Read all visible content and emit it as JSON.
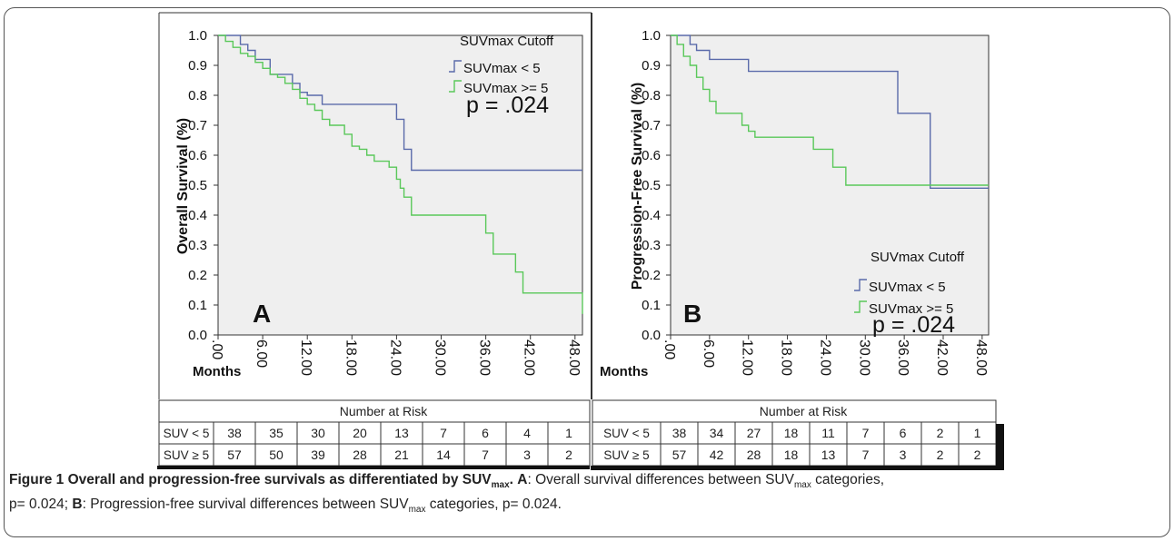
{
  "chart_data": [
    {
      "type": "line",
      "panel_letter": "A",
      "ylabel": "Overall Survival (%)",
      "xlabel": "Months",
      "ylim": [
        0.0,
        1.0
      ],
      "xlim": [
        0,
        49
      ],
      "yticks": [
        "0.0",
        "0.1",
        "0.2",
        "0.3",
        "0.4",
        "0.5",
        "0.6",
        "0.7",
        "0.8",
        "0.9",
        "1.0"
      ],
      "xticks": [
        ".00",
        "6.00",
        "12.00",
        "18.00",
        "24.00",
        "30.00",
        "36.00",
        "42.00",
        "48.00"
      ],
      "legend_title": "SUVmax Cutoff",
      "legend_position": "top-right",
      "p_value": "p = .024",
      "series": [
        {
          "name": "SUVmax < 5",
          "color": "#5a6aaa",
          "x": [
            0,
            3,
            4,
            5,
            7,
            10,
            11,
            12,
            14,
            15,
            24,
            25,
            26,
            49
          ],
          "y": [
            1.0,
            0.97,
            0.95,
            0.92,
            0.87,
            0.84,
            0.81,
            0.8,
            0.77,
            0.77,
            0.72,
            0.62,
            0.55,
            0.55
          ]
        },
        {
          "name": "SUVmax >= 5",
          "color": "#5ac85a",
          "x": [
            0,
            1,
            2,
            3,
            4,
            5,
            6,
            7,
            8,
            9,
            10,
            11,
            12,
            13,
            14,
            15,
            17,
            18,
            19,
            20,
            21,
            23,
            24,
            24.5,
            25,
            26,
            36,
            37,
            40,
            41,
            48,
            49
          ],
          "y": [
            1.0,
            0.98,
            0.96,
            0.94,
            0.93,
            0.91,
            0.89,
            0.87,
            0.86,
            0.84,
            0.82,
            0.79,
            0.77,
            0.75,
            0.72,
            0.7,
            0.67,
            0.63,
            0.62,
            0.6,
            0.58,
            0.56,
            0.52,
            0.49,
            0.46,
            0.4,
            0.34,
            0.27,
            0.21,
            0.14,
            0.14,
            0.07
          ]
        }
      ]
    },
    {
      "type": "line",
      "panel_letter": "B",
      "ylabel": "Progression-Free Survival (%)",
      "xlabel": "Months",
      "ylim": [
        0.0,
        1.0
      ],
      "xlim": [
        0,
        49
      ],
      "yticks": [
        "0.0",
        "0.1",
        "0.2",
        "0.3",
        "0.4",
        "0.5",
        "0.6",
        "0.7",
        "0.8",
        "0.9",
        "1.0"
      ],
      "xticks": [
        ".00",
        "6.00",
        "12.00",
        "18.00",
        "24.00",
        "30.00",
        "36.00",
        "42.00",
        "48.00"
      ],
      "legend_title": "SUVmax Cutoff",
      "legend_position": "bottom-right",
      "p_value": "p = .024",
      "series": [
        {
          "name": "SUVmax < 5",
          "color": "#5a6aaa",
          "x": [
            0,
            3,
            4,
            6,
            12,
            35,
            40,
            49
          ],
          "y": [
            1.0,
            0.97,
            0.95,
            0.92,
            0.88,
            0.74,
            0.49,
            0.49
          ]
        },
        {
          "name": "SUVmax >= 5",
          "color": "#5ac85a",
          "x": [
            0,
            1,
            2,
            3,
            4,
            5,
            6,
            7,
            11,
            12,
            13,
            22,
            25,
            27,
            49
          ],
          "y": [
            1.0,
            0.97,
            0.93,
            0.9,
            0.86,
            0.82,
            0.78,
            0.74,
            0.7,
            0.68,
            0.66,
            0.62,
            0.56,
            0.5,
            0.5
          ]
        }
      ]
    }
  ],
  "risk_tables": [
    {
      "title": "Number at Risk",
      "rows": [
        {
          "label": "SUV < 5",
          "values": [
            "38",
            "35",
            "30",
            "20",
            "13",
            "7",
            "6",
            "4",
            "1"
          ]
        },
        {
          "label": "SUV ≥ 5",
          "values": [
            "57",
            "50",
            "39",
            "28",
            "21",
            "14",
            "7",
            "3",
            "2"
          ]
        }
      ]
    },
    {
      "title": "Number at Risk",
      "rows": [
        {
          "label": "SUV < 5",
          "values": [
            "38",
            "34",
            "27",
            "18",
            "11",
            "7",
            "6",
            "2",
            "1"
          ]
        },
        {
          "label": "SUV ≥ 5",
          "values": [
            "57",
            "42",
            "28",
            "18",
            "13",
            "7",
            "3",
            "2",
            "2"
          ]
        }
      ]
    }
  ],
  "caption": {
    "figure_title": "Figure 1 Overall and progression-free survivals as differentiated by SUV",
    "title_sub": "max",
    "title_end": ".",
    "a_label": "A",
    "a_text": ": Overall survival differences between SUV",
    "a_sub": "max",
    "a_end": " categories,",
    "a_p": "p= 0.024;",
    "b_label": "B",
    "b_text": ": Progression-free survival differences between SUV",
    "b_sub": "max",
    "b_end": " categories, p= 0.024."
  }
}
